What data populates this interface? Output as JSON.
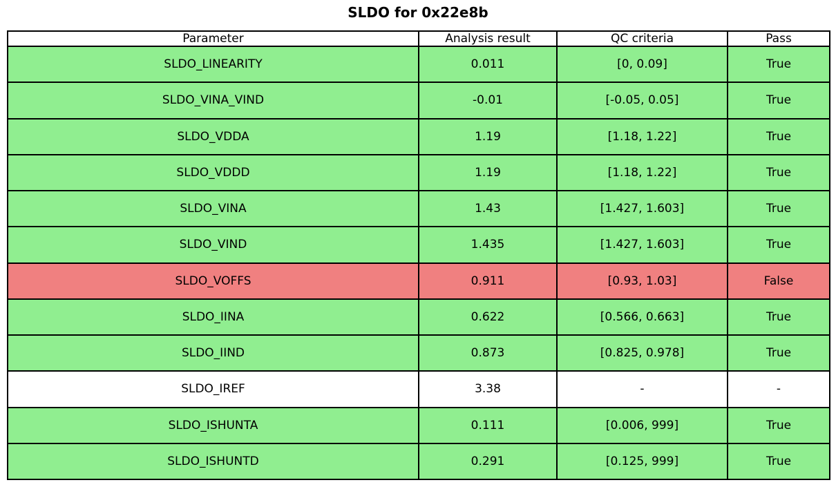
{
  "title": "SLDO for 0x22e8b",
  "colors": {
    "pass": "#90ee90",
    "fail": "#f08080",
    "na": "#ffffff",
    "header_bg": "#ffffff",
    "border": "#000000",
    "text": "#000000"
  },
  "table": {
    "headers": [
      "Parameter",
      "Analysis result",
      "QC criteria",
      "Pass"
    ],
    "rows": [
      {
        "parameter": "SLDO_LINEARITY",
        "result": "0.011",
        "criteria": "[0, 0.09]",
        "pass": "True",
        "status": "pass"
      },
      {
        "parameter": "SLDO_VINA_VIND",
        "result": "-0.01",
        "criteria": "[-0.05, 0.05]",
        "pass": "True",
        "status": "pass"
      },
      {
        "parameter": "SLDO_VDDA",
        "result": "1.19",
        "criteria": "[1.18, 1.22]",
        "pass": "True",
        "status": "pass"
      },
      {
        "parameter": "SLDO_VDDD",
        "result": "1.19",
        "criteria": "[1.18, 1.22]",
        "pass": "True",
        "status": "pass"
      },
      {
        "parameter": "SLDO_VINA",
        "result": "1.43",
        "criteria": "[1.427, 1.603]",
        "pass": "True",
        "status": "pass"
      },
      {
        "parameter": "SLDO_VIND",
        "result": "1.435",
        "criteria": "[1.427, 1.603]",
        "pass": "True",
        "status": "pass"
      },
      {
        "parameter": "SLDO_VOFFS",
        "result": "0.911",
        "criteria": "[0.93, 1.03]",
        "pass": "False",
        "status": "fail"
      },
      {
        "parameter": "SLDO_IINA",
        "result": "0.622",
        "criteria": "[0.566, 0.663]",
        "pass": "True",
        "status": "pass"
      },
      {
        "parameter": "SLDO_IIND",
        "result": "0.873",
        "criteria": "[0.825, 0.978]",
        "pass": "True",
        "status": "pass"
      },
      {
        "parameter": "SLDO_IREF",
        "result": "3.38",
        "criteria": "-",
        "pass": "-",
        "status": "na"
      },
      {
        "parameter": "SLDO_ISHUNTA",
        "result": "0.111",
        "criteria": "[0.006, 999]",
        "pass": "True",
        "status": "pass"
      },
      {
        "parameter": "SLDO_ISHUNTD",
        "result": "0.291",
        "criteria": "[0.125, 999]",
        "pass": "True",
        "status": "pass"
      }
    ]
  },
  "chart_data": {
    "type": "table",
    "title": "SLDO for 0x22e8b",
    "columns": [
      "Parameter",
      "Analysis result",
      "QC criteria",
      "Pass"
    ],
    "rows": [
      [
        "SLDO_LINEARITY",
        0.011,
        "[0, 0.09]",
        true
      ],
      [
        "SLDO_VINA_VIND",
        -0.01,
        "[-0.05, 0.05]",
        true
      ],
      [
        "SLDO_VDDA",
        1.19,
        "[1.18, 1.22]",
        true
      ],
      [
        "SLDO_VDDD",
        1.19,
        "[1.18, 1.22]",
        true
      ],
      [
        "SLDO_VINA",
        1.43,
        "[1.427, 1.603]",
        true
      ],
      [
        "SLDO_VIND",
        1.435,
        "[1.427, 1.603]",
        true
      ],
      [
        "SLDO_VOFFS",
        0.911,
        "[0.93, 1.03]",
        false
      ],
      [
        "SLDO_IINA",
        0.622,
        "[0.566, 0.663]",
        true
      ],
      [
        "SLDO_IIND",
        0.873,
        "[0.825, 0.978]",
        true
      ],
      [
        "SLDO_IREF",
        3.38,
        null,
        null
      ],
      [
        "SLDO_ISHUNTA",
        0.111,
        "[0.006, 999]",
        true
      ],
      [
        "SLDO_ISHUNTD",
        0.291,
        "[0.125, 999]",
        true
      ]
    ],
    "row_color_legend": {
      "pass": "#90ee90",
      "fail": "#f08080",
      "na": "#ffffff"
    }
  }
}
